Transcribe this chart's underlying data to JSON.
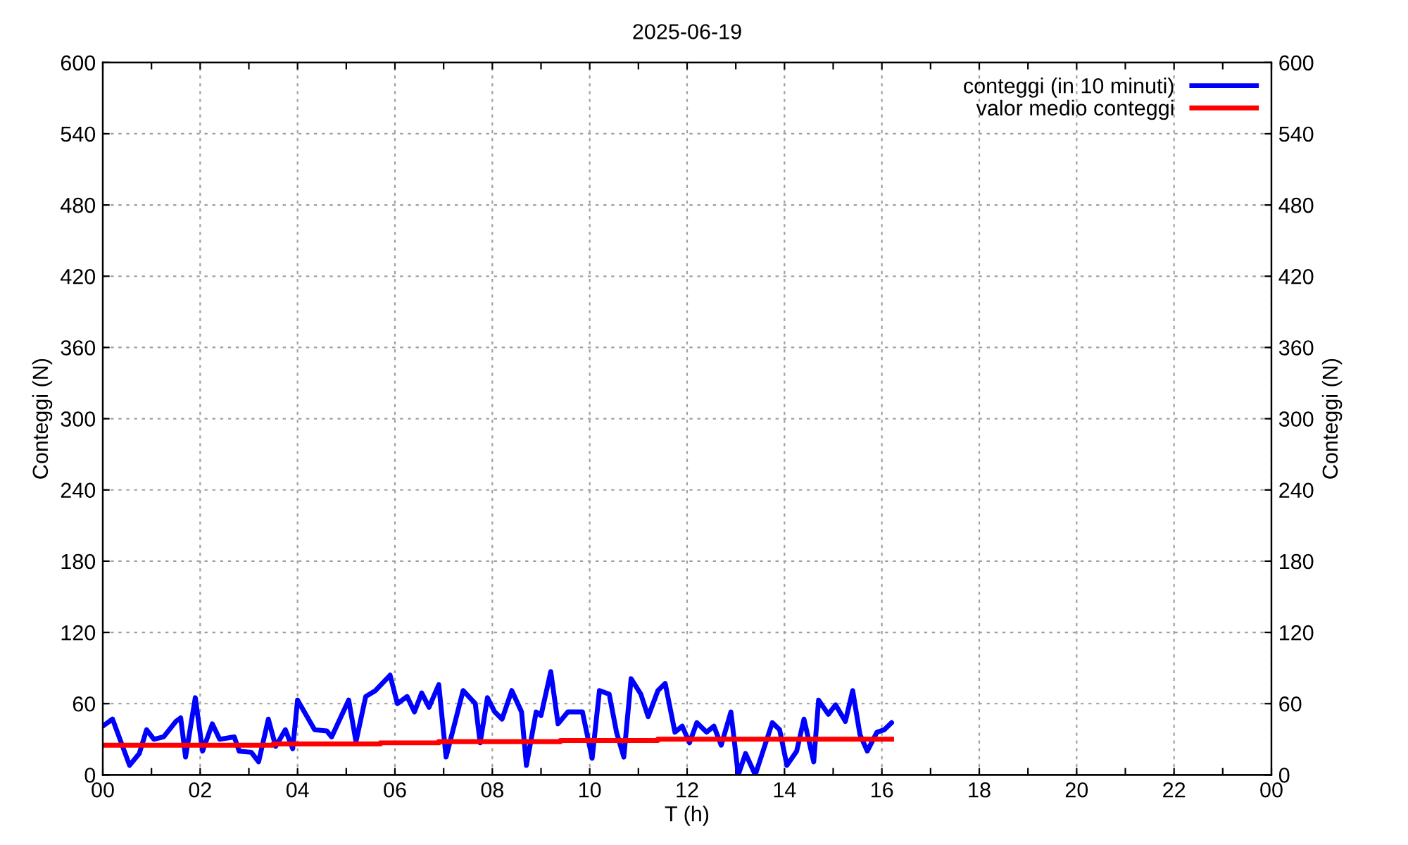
{
  "chart_data": {
    "type": "line",
    "title": "2025-06-19",
    "xlabel": "T (h)",
    "ylabel": "Conteggi (N)",
    "y2label": "Conteggi (N)",
    "xlim": [
      0,
      24
    ],
    "xticks": [
      {
        "value": 0,
        "label": "00"
      },
      {
        "value": 1,
        "label": null
      },
      {
        "value": 2,
        "label": "02"
      },
      {
        "value": 3,
        "label": null
      },
      {
        "value": 4,
        "label": "04"
      },
      {
        "value": 5,
        "label": null
      },
      {
        "value": 6,
        "label": "06"
      },
      {
        "value": 7,
        "label": null
      },
      {
        "value": 8,
        "label": "08"
      },
      {
        "value": 9,
        "label": null
      },
      {
        "value": 10,
        "label": "10"
      },
      {
        "value": 11,
        "label": null
      },
      {
        "value": 12,
        "label": "12"
      },
      {
        "value": 13,
        "label": null
      },
      {
        "value": 14,
        "label": "14"
      },
      {
        "value": 15,
        "label": null
      },
      {
        "value": 16,
        "label": "16"
      },
      {
        "value": 17,
        "label": null
      },
      {
        "value": 18,
        "label": "18"
      },
      {
        "value": 19,
        "label": null
      },
      {
        "value": 20,
        "label": "20"
      },
      {
        "value": 21,
        "label": null
      },
      {
        "value": 22,
        "label": "22"
      },
      {
        "value": 23,
        "label": null
      },
      {
        "value": 24,
        "label": "00"
      }
    ],
    "ylim": [
      0,
      600
    ],
    "yticks": [
      0,
      60,
      120,
      180,
      240,
      300,
      360,
      420,
      480,
      540,
      600
    ],
    "y2lim": [
      0,
      600
    ],
    "y2ticks": [
      0,
      60,
      120,
      180,
      240,
      300,
      360,
      420,
      480,
      540,
      600
    ],
    "grid": true,
    "legend": "top right",
    "series": [
      {
        "name": "conteggi (in 10 minuti)",
        "color": "#0000ff",
        "x": [
          0,
          0.2,
          0.55,
          0.75,
          0.9,
          1.05,
          1.25,
          1.5,
          1.6,
          1.7,
          1.9,
          2.05,
          2.25,
          2.4,
          2.7,
          2.8,
          3.05,
          3.2,
          3.4,
          3.55,
          3.75,
          3.9,
          4.0,
          4.35,
          4.6,
          4.7,
          5.05,
          5.2,
          5.4,
          5.6,
          5.9,
          6.05,
          6.25,
          6.4,
          6.55,
          6.7,
          6.9,
          7.05,
          7.4,
          7.65,
          7.75,
          7.9,
          8.05,
          8.2,
          8.4,
          8.6,
          8.7,
          8.9,
          9.0,
          9.2,
          9.35,
          9.55,
          9.85,
          10.05,
          10.2,
          10.4,
          10.55,
          10.7,
          10.85,
          11.05,
          11.2,
          11.4,
          11.55,
          11.75,
          11.9,
          12.05,
          12.2,
          12.4,
          12.55,
          12.7,
          12.9,
          13.05,
          13.2,
          13.4,
          13.75,
          13.9,
          14.05,
          14.25,
          14.4,
          14.6,
          14.7,
          14.9,
          15.05,
          15.25,
          15.4,
          15.55,
          15.7,
          15.9,
          16.05,
          16.2
        ],
        "values": [
          41,
          47,
          8,
          18,
          38,
          30,
          32,
          45,
          48,
          15,
          65,
          20,
          43,
          30,
          32,
          20,
          19,
          11,
          47,
          24,
          38,
          22,
          63,
          38,
          37,
          32,
          63,
          28,
          66,
          71,
          84,
          60,
          66,
          53,
          69,
          57,
          76,
          15,
          71,
          60,
          27,
          65,
          53,
          47,
          71,
          53,
          8,
          53,
          50,
          87,
          43,
          53,
          53,
          14,
          71,
          68,
          36,
          15,
          81,
          68,
          49,
          71,
          77,
          36,
          41,
          27,
          44,
          36,
          41,
          25,
          53,
          0,
          18,
          0,
          44,
          38,
          8,
          20,
          47,
          11,
          63,
          51,
          59,
          45,
          71,
          34,
          20,
          36,
          38,
          44
        ]
      },
      {
        "name": "valor medio conteggi",
        "color": "#ff0000",
        "type": "step",
        "x": [
          0,
          3.5,
          5.7,
          6.9,
          9.4,
          11.4,
          16.2
        ],
        "values": [
          25,
          26,
          27,
          28,
          29,
          30,
          30
        ]
      }
    ]
  }
}
